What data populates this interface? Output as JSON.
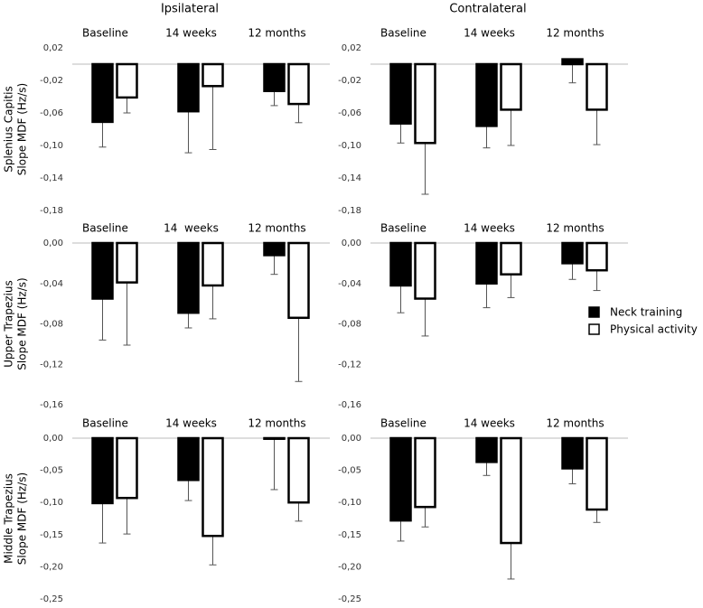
{
  "legend": {
    "position": "right",
    "items": [
      {
        "name": "Neck training",
        "color": "#000000"
      },
      {
        "name": "Physical activity",
        "color": "#ffffff"
      }
    ]
  },
  "chart_data": [
    {
      "type": "bar",
      "title": "Ipsilateral",
      "ylabel": [
        "Splenius Capitis",
        "Slope MDF (Hz/s)"
      ],
      "categories": [
        "Baseline",
        "14 weeks",
        "12 months"
      ],
      "series": [
        {
          "values": [
            -0.071,
            -0.058,
            -0.033
          ],
          "errors": [
            0.031,
            0.051,
            0.018
          ]
        },
        {
          "values": [
            -0.041,
            -0.027,
            -0.049
          ],
          "errors": [
            0.019,
            0.078,
            0.023
          ]
        }
      ],
      "ylim": [
        -0.18,
        0.02
      ],
      "yticks": [
        {
          "value": 0.02,
          "label": "0,02"
        },
        {
          "value": -0.02,
          "label": "-0,02"
        },
        {
          "value": -0.06,
          "label": "-0,06"
        },
        {
          "value": -0.1,
          "label": "-0,10"
        },
        {
          "value": -0.14,
          "label": "-0,14"
        },
        {
          "value": -0.18,
          "label": "-0,18"
        }
      ]
    },
    {
      "type": "bar",
      "title": "Contralateral",
      "categories": [
        "Baseline",
        "14 weeks",
        "12 months"
      ],
      "series": [
        {
          "values": [
            -0.073,
            -0.076,
            0.006
          ],
          "errors": [
            0.024,
            0.027,
            0.029
          ]
        },
        {
          "values": [
            -0.097,
            -0.056,
            -0.056
          ],
          "errors": [
            0.063,
            0.044,
            0.043
          ]
        }
      ],
      "ylim": [
        -0.18,
        0.02
      ],
      "yticks": [
        {
          "value": 0.02,
          "label": "0,02"
        },
        {
          "value": -0.02,
          "label": "-0,02"
        },
        {
          "value": -0.06,
          "label": "-0,06"
        },
        {
          "value": -0.1,
          "label": "-0,10"
        },
        {
          "value": -0.14,
          "label": "-0,14"
        },
        {
          "value": -0.18,
          "label": "-0,18"
        }
      ]
    },
    {
      "type": "bar",
      "ylabel": [
        "Upper Trapezius",
        "Slope MDF (Hz/s)"
      ],
      "categories": [
        "Baseline",
        "14  weeks",
        "12 months"
      ],
      "series": [
        {
          "values": [
            -0.055,
            -0.069,
            -0.012
          ],
          "errors": [
            0.041,
            0.015,
            0.019
          ]
        },
        {
          "values": [
            -0.039,
            -0.042,
            -0.074
          ],
          "errors": [
            0.062,
            0.033,
            0.063
          ]
        }
      ],
      "ylim": [
        -0.16,
        0
      ],
      "yticks": [
        {
          "value": 0,
          "label": "0,00"
        },
        {
          "value": -0.04,
          "label": "-0,04"
        },
        {
          "value": -0.08,
          "label": "-0,08"
        },
        {
          "value": -0.12,
          "label": "-0,12"
        },
        {
          "value": -0.16,
          "label": "-0,16"
        }
      ]
    },
    {
      "type": "bar",
      "categories": [
        "Baseline",
        "14 weeks",
        "12 months"
      ],
      "series": [
        {
          "values": [
            -0.042,
            -0.04,
            -0.02
          ],
          "errors": [
            0.027,
            0.024,
            0.016
          ]
        },
        {
          "values": [
            -0.055,
            -0.031,
            -0.027
          ],
          "errors": [
            0.037,
            0.023,
            0.02
          ]
        }
      ],
      "ylim": [
        -0.16,
        0
      ],
      "yticks": [
        {
          "value": 0,
          "label": "0,00"
        },
        {
          "value": -0.04,
          "label": "-0,04"
        },
        {
          "value": -0.08,
          "label": "-0,08"
        },
        {
          "value": -0.12,
          "label": "-0,12"
        },
        {
          "value": -0.16,
          "label": "-0,16"
        }
      ]
    },
    {
      "type": "bar",
      "ylabel": [
        "Middle Trapezius",
        "Slope MDF (Hz/s)"
      ],
      "categories": [
        "Baseline",
        "14 weeks",
        "12 months"
      ],
      "series": [
        {
          "values": [
            -0.101,
            -0.065,
            -0.001
          ],
          "errors": [
            0.062,
            0.032,
            0.079
          ]
        },
        {
          "values": [
            -0.093,
            -0.152,
            -0.1
          ],
          "errors": [
            0.056,
            0.045,
            0.029
          ]
        }
      ],
      "ylim": [
        -0.25,
        0
      ],
      "yticks": [
        {
          "value": 0,
          "label": "0,00"
        },
        {
          "value": -0.05,
          "label": "-0,05"
        },
        {
          "value": -0.1,
          "label": "-0,10"
        },
        {
          "value": -0.15,
          "label": "-0,15"
        },
        {
          "value": -0.2,
          "label": "-0,20"
        },
        {
          "value": -0.25,
          "label": "-0,25"
        }
      ]
    },
    {
      "type": "bar",
      "categories": [
        "Baseline",
        "14 weeks",
        "12 months"
      ],
      "series": [
        {
          "values": [
            -0.128,
            -0.037,
            -0.047
          ],
          "errors": [
            0.032,
            0.021,
            0.024
          ]
        },
        {
          "values": [
            -0.107,
            -0.163,
            -0.111
          ],
          "errors": [
            0.031,
            0.056,
            0.02
          ]
        }
      ],
      "ylim": [
        -0.25,
        0
      ],
      "yticks": [
        {
          "value": 0,
          "label": "0,00"
        },
        {
          "value": -0.05,
          "label": "-0,05"
        },
        {
          "value": -0.1,
          "label": "-0,10"
        },
        {
          "value": -0.15,
          "label": "-0,15"
        },
        {
          "value": -0.2,
          "label": "-0,20"
        },
        {
          "value": -0.25,
          "label": "-0,25"
        }
      ]
    }
  ]
}
